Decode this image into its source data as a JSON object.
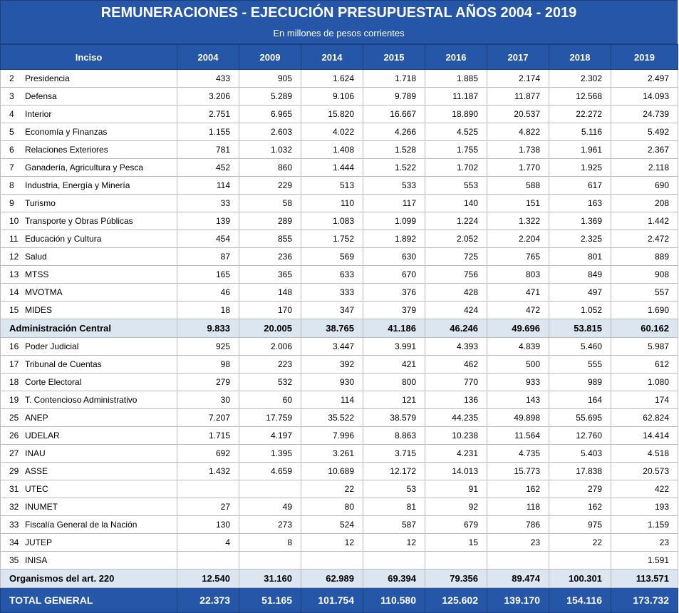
{
  "header": {
    "title": "REMUNERACIONES - EJECUCIÓN PRESUPUESTAL AÑOS 2004 - 2019",
    "subtitle": "En millones de pesos corrientes"
  },
  "table": {
    "columns": [
      "Inciso",
      "2004",
      "2009",
      "2014",
      "2015",
      "2016",
      "2017",
      "2018",
      "2019"
    ],
    "sections": [
      {
        "rows": [
          {
            "code": "2",
            "name": "Presidencia",
            "values": [
              "433",
              "905",
              "1.624",
              "1.718",
              "1.885",
              "2.174",
              "2.302",
              "2.497"
            ]
          },
          {
            "code": "3",
            "name": "Defensa",
            "values": [
              "3.206",
              "5.289",
              "9.106",
              "9.789",
              "11.187",
              "11.877",
              "12.568",
              "14.093"
            ]
          },
          {
            "code": "4",
            "name": "Interior",
            "values": [
              "2.751",
              "6.965",
              "15.820",
              "16.667",
              "18.890",
              "20.537",
              "22.272",
              "24.739"
            ]
          },
          {
            "code": "5",
            "name": "Economía y Finanzas",
            "values": [
              "1.155",
              "2.603",
              "4.022",
              "4.266",
              "4.525",
              "4.822",
              "5.116",
              "5.492"
            ]
          },
          {
            "code": "6",
            "name": "Relaciones Exteriores",
            "values": [
              "781",
              "1.032",
              "1.408",
              "1.528",
              "1.755",
              "1.738",
              "1.961",
              "2.367"
            ]
          },
          {
            "code": "7",
            "name": "Ganadería, Agricultura y Pesca",
            "values": [
              "452",
              "860",
              "1.444",
              "1.522",
              "1.702",
              "1.770",
              "1.925",
              "2.118"
            ]
          },
          {
            "code": "8",
            "name": "Industria, Energía y Minería",
            "values": [
              "114",
              "229",
              "513",
              "533",
              "553",
              "588",
              "617",
              "690"
            ]
          },
          {
            "code": "9",
            "name": "Turismo",
            "values": [
              "33",
              "58",
              "110",
              "117",
              "140",
              "151",
              "163",
              "208"
            ]
          },
          {
            "code": "10",
            "name": "Transporte y Obras Públicas",
            "values": [
              "139",
              "289",
              "1.083",
              "1.099",
              "1.224",
              "1.322",
              "1.369",
              "1.442"
            ]
          },
          {
            "code": "11",
            "name": "Educación y Cultura",
            "values": [
              "454",
              "855",
              "1.752",
              "1.892",
              "2.052",
              "2.204",
              "2.325",
              "2.472"
            ]
          },
          {
            "code": "12",
            "name": "Salud",
            "values": [
              "87",
              "236",
              "569",
              "630",
              "725",
              "765",
              "801",
              "889"
            ]
          },
          {
            "code": "13",
            "name": "MTSS",
            "values": [
              "165",
              "365",
              "633",
              "670",
              "756",
              "803",
              "849",
              "908"
            ]
          },
          {
            "code": "14",
            "name": "MVOTMA",
            "values": [
              "46",
              "148",
              "333",
              "376",
              "428",
              "471",
              "497",
              "557"
            ]
          },
          {
            "code": "15",
            "name": "MIDES",
            "values": [
              "18",
              "170",
              "347",
              "379",
              "424",
              "472",
              "1.052",
              "1.690"
            ]
          }
        ],
        "subtotal": {
          "label": "Administración Central",
          "values": [
            "9.833",
            "20.005",
            "38.765",
            "41.186",
            "46.246",
            "49.696",
            "53.815",
            "60.162"
          ]
        }
      },
      {
        "rows": [
          {
            "code": "16",
            "name": "Poder Judicial",
            "values": [
              "925",
              "2.006",
              "3.447",
              "3.991",
              "4.393",
              "4.839",
              "5.460",
              "5.987"
            ]
          },
          {
            "code": "17",
            "name": "Tribunal de Cuentas",
            "values": [
              "98",
              "223",
              "392",
              "421",
              "462",
              "500",
              "555",
              "612"
            ]
          },
          {
            "code": "18",
            "name": "Corte Electoral",
            "values": [
              "279",
              "532",
              "930",
              "800",
              "770",
              "933",
              "989",
              "1.080"
            ]
          },
          {
            "code": "19",
            "name": "T. Contencioso Administrativo",
            "values": [
              "30",
              "60",
              "114",
              "121",
              "136",
              "143",
              "164",
              "174"
            ]
          },
          {
            "code": "25",
            "name": "ANEP",
            "values": [
              "7.207",
              "17.759",
              "35.522",
              "38.579",
              "44.235",
              "49.898",
              "55.695",
              "62.824"
            ]
          },
          {
            "code": "26",
            "name": "UDELAR",
            "values": [
              "1.715",
              "4.197",
              "7.996",
              "8.863",
              "10.238",
              "11.564",
              "12.760",
              "14.414"
            ]
          },
          {
            "code": "27",
            "name": "INAU",
            "values": [
              "692",
              "1.395",
              "3.261",
              "3.715",
              "4.231",
              "4.735",
              "5.403",
              "4.518"
            ]
          },
          {
            "code": "29",
            "name": "ASSE",
            "values": [
              "1.432",
              "4.659",
              "10.689",
              "12.172",
              "14.013",
              "15.773",
              "17.838",
              "20.573"
            ]
          },
          {
            "code": "31",
            "name": "UTEC",
            "values": [
              null,
              null,
              "22",
              "53",
              "91",
              "162",
              "279",
              "422"
            ]
          },
          {
            "code": "32",
            "name": "INUMET",
            "values": [
              "27",
              "49",
              "80",
              "81",
              "92",
              "118",
              "162",
              "193"
            ]
          },
          {
            "code": "33",
            "name": "Fiscalía General de la Nación",
            "values": [
              "130",
              "273",
              "524",
              "587",
              "679",
              "786",
              "975",
              "1.159"
            ]
          },
          {
            "code": "34",
            "name": "JUTEP",
            "values": [
              "4",
              "8",
              "12",
              "12",
              "15",
              "23",
              "22",
              "23"
            ]
          },
          {
            "code": "35",
            "name": "INISA",
            "values": [
              null,
              null,
              null,
              null,
              null,
              null,
              null,
              "1.591"
            ]
          }
        ],
        "subtotal": {
          "label": "Organismos del art. 220",
          "values": [
            "12.540",
            "31.160",
            "62.989",
            "69.394",
            "79.356",
            "89.474",
            "100.301",
            "113.571"
          ]
        }
      }
    ],
    "total": {
      "label": "TOTAL GENERAL",
      "values": [
        "22.373",
        "51.165",
        "101.754",
        "110.580",
        "125.602",
        "139.170",
        "154.116",
        "173.732"
      ]
    }
  }
}
